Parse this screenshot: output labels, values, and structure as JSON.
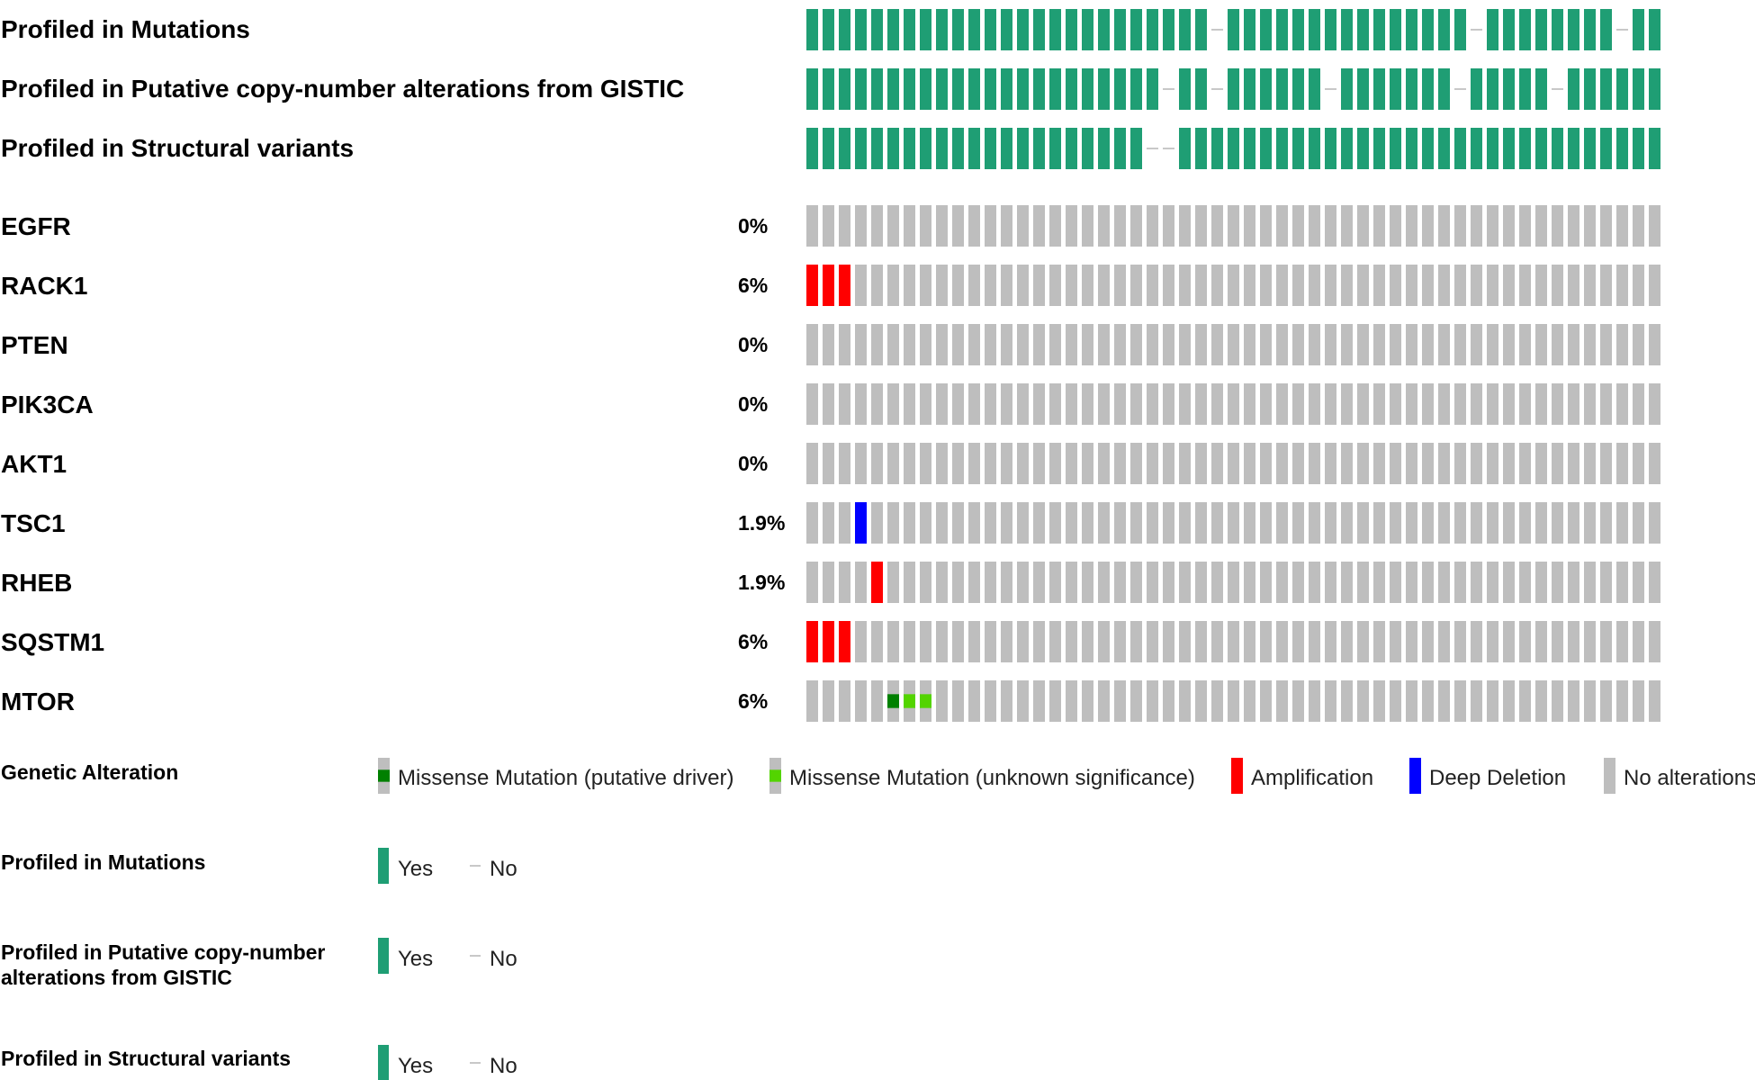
{
  "chart_data": {
    "type": "oncoprint",
    "sample_count": 53,
    "colors": {
      "profiled_yes": "#1f9e74",
      "profiled_no": "#c8c8c8",
      "no_alteration": "#bebebe",
      "amplification": "#ff0000",
      "deep_deletion": "#0000ff",
      "missense_driver": "#008000",
      "missense_unknown": "#53d400"
    },
    "profile_tracks": [
      {
        "label": "Profiled in Mutations",
        "not_profiled_samples": [
          25,
          41,
          50
        ]
      },
      {
        "label": "Profiled in Putative copy-number alterations from GISTIC",
        "not_profiled_samples": [
          22,
          25,
          32,
          40,
          46
        ]
      },
      {
        "label": "Profiled in Structural variants",
        "not_profiled_samples": [
          21,
          22
        ]
      }
    ],
    "gene_tracks": [
      {
        "gene": "EGFR",
        "percent": "0%",
        "alterations": []
      },
      {
        "gene": "RACK1",
        "percent": "6%",
        "alterations": [
          {
            "sample": 0,
            "type": "amplification"
          },
          {
            "sample": 1,
            "type": "amplification"
          },
          {
            "sample": 2,
            "type": "amplification"
          }
        ]
      },
      {
        "gene": "PTEN",
        "percent": "0%",
        "alterations": []
      },
      {
        "gene": "PIK3CA",
        "percent": "0%",
        "alterations": []
      },
      {
        "gene": "AKT1",
        "percent": "0%",
        "alterations": []
      },
      {
        "gene": "TSC1",
        "percent": "1.9%",
        "alterations": [
          {
            "sample": 3,
            "type": "deep_deletion"
          }
        ]
      },
      {
        "gene": "RHEB",
        "percent": "1.9%",
        "alterations": [
          {
            "sample": 4,
            "type": "amplification"
          }
        ]
      },
      {
        "gene": "SQSTM1",
        "percent": "6%",
        "alterations": [
          {
            "sample": 0,
            "type": "amplification"
          },
          {
            "sample": 1,
            "type": "amplification"
          },
          {
            "sample": 2,
            "type": "amplification"
          }
        ]
      },
      {
        "gene": "MTOR",
        "percent": "6%",
        "alterations": [
          {
            "sample": 5,
            "type": "missense_driver"
          },
          {
            "sample": 6,
            "type": "missense_unknown"
          },
          {
            "sample": 7,
            "type": "missense_unknown"
          }
        ]
      }
    ],
    "legend": {
      "genetic_alteration": {
        "title": "Genetic Alteration",
        "items": [
          {
            "label": "Missense Mutation (putative driver)",
            "type": "missense_driver"
          },
          {
            "label": "Missense Mutation (unknown significance)",
            "type": "missense_unknown"
          },
          {
            "label": "Amplification",
            "type": "amplification"
          },
          {
            "label": "Deep Deletion",
            "type": "deep_deletion"
          },
          {
            "label": "No alterations",
            "type": "no_alteration"
          }
        ]
      },
      "profile_legends": [
        {
          "title_lines": [
            "Profiled in Mutations"
          ],
          "yes_label": "Yes",
          "no_label": "No"
        },
        {
          "title_lines": [
            "Profiled in Putative copy-number",
            "alterations from GISTIC"
          ],
          "yes_label": "Yes",
          "no_label": "No"
        },
        {
          "title_lines": [
            "Profiled in Structural variants"
          ],
          "yes_label": "Yes",
          "no_label": "No"
        }
      ]
    }
  }
}
